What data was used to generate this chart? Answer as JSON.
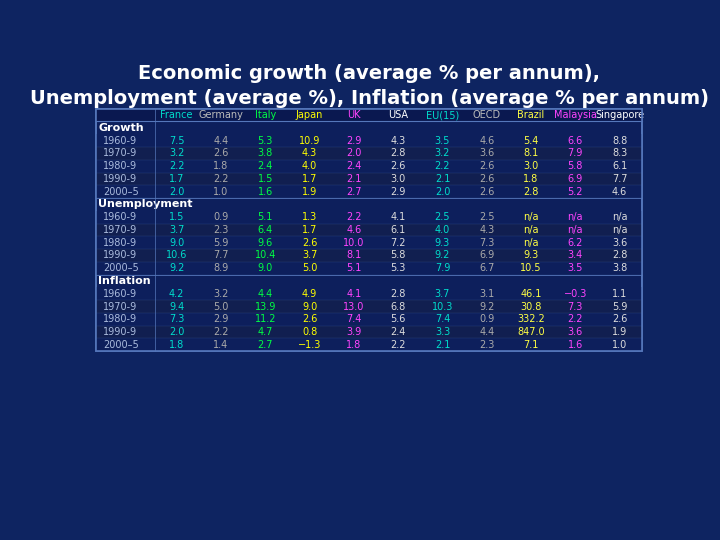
{
  "title": "Economic growth (average % per annum),\nUnemployment (average %), Inflation (average % per annum)",
  "background_color": "#0e2461",
  "table_bg": "#0d1f5c",
  "border_color": "#5577bb",
  "title_color": "#ffffff",
  "columns": [
    "France",
    "Germany",
    "Italy",
    "Japan",
    "UK",
    "USA",
    "EU(15)",
    "OECD",
    "Brazil",
    "Malaysia",
    "Singapore"
  ],
  "col_colors": [
    "#00ddcc",
    "#bbbbbb",
    "#00ff44",
    "#ffff00",
    "#ff44ff",
    "#ffffff",
    "#00ddcc",
    "#bbbbbb",
    "#ffff44",
    "#ff44ff",
    "#ffffff"
  ],
  "sections": [
    "Growth",
    "Unemployment",
    "Inflation"
  ],
  "rows": {
    "Growth": {
      "periods": [
        "1960-9",
        "1970-9",
        "1980-9",
        "1990-9",
        "2000–5"
      ],
      "data": [
        [
          "7.5",
          "4.4",
          "5.3",
          "10.9",
          "2.9",
          "4.3",
          "3.5",
          "4.6",
          "5.4",
          "6.6",
          "8.8"
        ],
        [
          "3.2",
          "2.6",
          "3.8",
          "4.3",
          "2.0",
          "2.8",
          "3.2",
          "3.6",
          "8.1",
          "7.9",
          "8.3"
        ],
        [
          "2.2",
          "1.8",
          "2.4",
          "4.0",
          "2.4",
          "2.6",
          "2.2",
          "2.6",
          "3.0",
          "5.8",
          "6.1"
        ],
        [
          "1.7",
          "2.2",
          "1.5",
          "1.7",
          "2.1",
          "3.0",
          "2.1",
          "2.6",
          "1.8",
          "6.9",
          "7.7"
        ],
        [
          "2.0",
          "1.0",
          "1.6",
          "1.9",
          "2.7",
          "2.9",
          "2.0",
          "2.6",
          "2.8",
          "5.2",
          "4.6"
        ]
      ]
    },
    "Unemployment": {
      "periods": [
        "1960-9",
        "1970-9",
        "1980-9",
        "1990-9",
        "2000–5"
      ],
      "data": [
        [
          "1.5",
          "0.9",
          "5.1",
          "1.3",
          "2.2",
          "4.1",
          "2.5",
          "2.5",
          "n/a",
          "n/a",
          "n/a"
        ],
        [
          "3.7",
          "2.3",
          "6.4",
          "1.7",
          "4.6",
          "6.1",
          "4.0",
          "4.3",
          "n/a",
          "n/a",
          "n/a"
        ],
        [
          "9.0",
          "5.9",
          "9.6",
          "2.6",
          "10.0",
          "7.2",
          "9.3",
          "7.3",
          "n/a",
          "6.2",
          "3.6"
        ],
        [
          "10.6",
          "7.7",
          "10.4",
          "3.7",
          "8.1",
          "5.8",
          "9.2",
          "6.9",
          "9.3",
          "3.4",
          "2.8"
        ],
        [
          "9.2",
          "8.9",
          "9.0",
          "5.0",
          "5.1",
          "5.3",
          "7.9",
          "6.7",
          "10.5",
          "3.5",
          "3.8"
        ]
      ]
    },
    "Inflation": {
      "periods": [
        "1960-9",
        "1970-9",
        "1980-9",
        "1990-9",
        "2000–5"
      ],
      "data": [
        [
          "4.2",
          "3.2",
          "4.4",
          "4.9",
          "4.1",
          "2.8",
          "3.7",
          "3.1",
          "46.1",
          "−0.3",
          "1.1"
        ],
        [
          "9.4",
          "5.0",
          "13.9",
          "9.0",
          "13.0",
          "6.8",
          "10.3",
          "9.2",
          "30.8",
          "7.3",
          "5.9"
        ],
        [
          "7.3",
          "2.9",
          "11.2",
          "2.6",
          "7.4",
          "5.6",
          "7.4",
          "0.9",
          "332.2",
          "2.2",
          "2.6"
        ],
        [
          "2.0",
          "2.2",
          "4.7",
          "0.8",
          "3.9",
          "2.4",
          "3.3",
          "4.4",
          "847.0",
          "3.6",
          "1.9"
        ],
        [
          "1.8",
          "1.4",
          "2.7",
          "−1.3",
          "1.8",
          "2.2",
          "2.1",
          "2.3",
          "7.1",
          "1.6",
          "1.0"
        ]
      ]
    }
  },
  "data_colors": {
    "France": "#00ddcc",
    "Germany": "#aaaaaa",
    "Italy": "#00ff44",
    "Japan": "#ffff00",
    "UK": "#ff44ff",
    "USA": "#dddddd",
    "EU(15)": "#00ddcc",
    "OECD": "#aaaaaa",
    "Brazil": "#ffff44",
    "Malaysia": "#ff44ff",
    "Singapore": "#dddddd"
  },
  "section_color": "#ffffff",
  "period_color": "#aabbdd",
  "title_fontsize": 14,
  "col_fontsize": 7,
  "data_fontsize": 7,
  "section_fontsize": 8,
  "period_fontsize": 7
}
